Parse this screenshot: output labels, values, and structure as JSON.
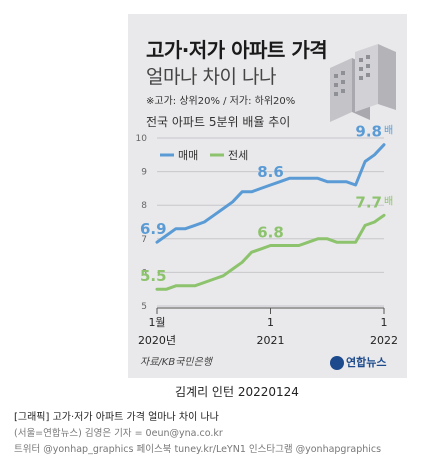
{
  "header": {
    "title": "고가·저가 아파트 가격",
    "subtitle": "얼마나 차이 나나",
    "note": "※고가: 상위20% / 저가: 하위20%",
    "description": "전국 아파트 5분위 배율 추이"
  },
  "source": "자료/KB국민은행",
  "logo": "연합뉴스",
  "author": "김계리 인턴  20220124",
  "caption": {
    "line1": "[그래픽] 고가·저가 아파트 가격 얼마나 차이 나나",
    "line2": "(서울=연합뉴스) 김영은 기자 = 0eun@yna.co.kr",
    "line3": "트위터 @yonhap_graphics 페이스북 tuney.kr/LeYN1 인스타그램 @yonhapgraphics"
  },
  "chart_data": {
    "type": "line",
    "title": "전국 아파트 5분위 배율 추이",
    "x": [
      "2020-01",
      "2020-02",
      "2020-03",
      "2020-04",
      "2020-05",
      "2020-06",
      "2020-07",
      "2020-08",
      "2020-09",
      "2020-10",
      "2020-11",
      "2020-12",
      "2021-01",
      "2021-02",
      "2021-03",
      "2021-04",
      "2021-05",
      "2021-06",
      "2021-07",
      "2021-08",
      "2021-09",
      "2021-10",
      "2021-11",
      "2021-12",
      "2022-01"
    ],
    "ylim": [
      5,
      10
    ],
    "yticks": [
      5,
      6,
      7,
      8,
      9,
      10
    ],
    "xtick_labels": [
      {
        "month": "1월",
        "year": "2020년"
      },
      {
        "month": "1",
        "year": "2021"
      },
      {
        "month": "1",
        "year": "2022"
      }
    ],
    "series": [
      {
        "name": "매매",
        "color": "#5b9bd5",
        "values": [
          6.9,
          7.1,
          7.3,
          7.3,
          7.4,
          7.5,
          7.7,
          7.9,
          8.1,
          8.4,
          8.4,
          8.5,
          8.6,
          8.7,
          8.8,
          8.8,
          8.8,
          8.8,
          8.7,
          8.7,
          8.7,
          8.6,
          9.3,
          9.5,
          9.8
        ]
      },
      {
        "name": "전세",
        "color": "#8dc36d",
        "values": [
          5.5,
          5.5,
          5.6,
          5.6,
          5.6,
          5.7,
          5.8,
          5.9,
          6.1,
          6.3,
          6.6,
          6.7,
          6.8,
          6.8,
          6.8,
          6.8,
          6.9,
          7.0,
          7.0,
          6.9,
          6.9,
          6.9,
          7.4,
          7.5,
          7.7
        ]
      }
    ],
    "annotations": [
      {
        "series": "매매",
        "x": "2020-01",
        "label": "6.9"
      },
      {
        "series": "매매",
        "x": "2021-01",
        "label": "8.6"
      },
      {
        "series": "매매",
        "x": "2022-01",
        "label": "9.8",
        "unit": "배"
      },
      {
        "series": "전세",
        "x": "2020-01",
        "label": "5.5"
      },
      {
        "series": "전세",
        "x": "2021-01",
        "label": "6.8"
      },
      {
        "series": "전세",
        "x": "2022-01",
        "label": "7.7",
        "unit": "배"
      }
    ],
    "legend_position": "top-left",
    "grid": "horizontal"
  }
}
